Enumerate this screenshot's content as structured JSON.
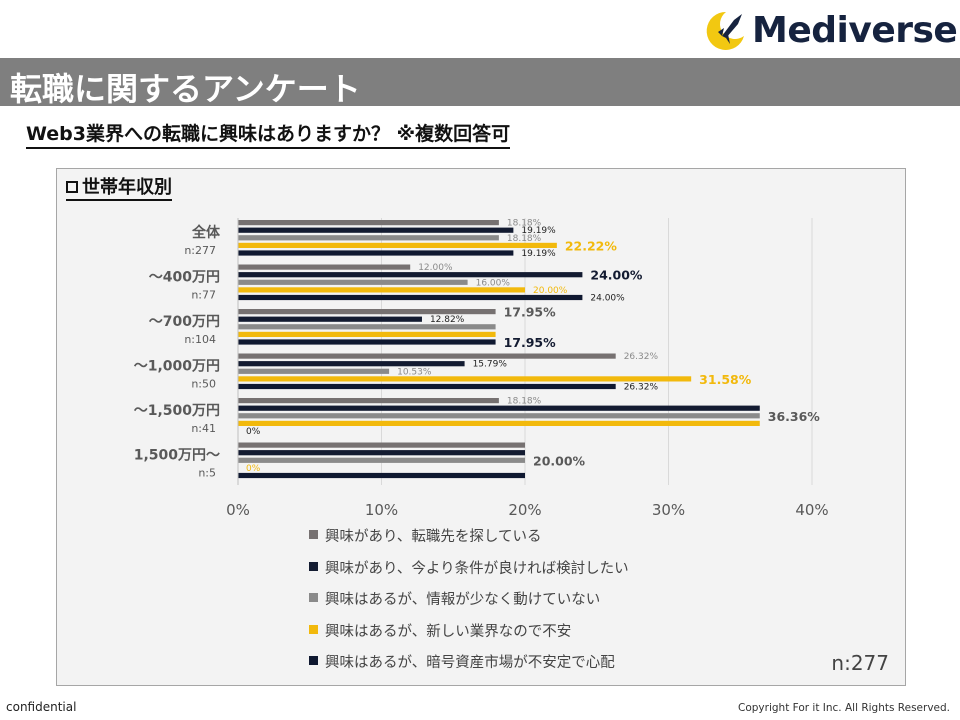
{
  "brand": {
    "name": "Mediverse"
  },
  "header": {
    "title": "転職に関するアンケート"
  },
  "question": "Web3業界への転職に興味はありますか？ ※複数回答可",
  "panel": {
    "title": "世帯年収別",
    "n_total": "n:277"
  },
  "footer": {
    "left": "confidential",
    "right": "Copyright For it Inc. All Rights Reserved."
  },
  "colors": {
    "s1": "#767171",
    "s2": "#131b31",
    "s3": "#8a8a8a",
    "s4": "#f2b90c",
    "s5": "#0f1830",
    "panel_bg": "#f3f3f3",
    "grid": "#d9d9d9"
  },
  "chart_data": {
    "type": "bar",
    "orientation": "horizontal",
    "categories": [
      "全体",
      "～400万円",
      "～700万円",
      "～1,000万円",
      "～1,500万円",
      "1,500万円～"
    ],
    "category_n": [
      "n:277",
      "n:77",
      "n:104",
      "n:50",
      "n:41",
      "n:5"
    ],
    "series": [
      {
        "name": "興味があり、転職先を探している",
        "values": [
          18.18,
          12.0,
          17.95,
          26.32,
          18.18,
          20.0
        ],
        "labels": [
          "18.18%",
          "12.00%",
          "17.95%",
          "26.32%",
          "18.18%",
          ""
        ]
      },
      {
        "name": "興味があり、今より条件が良ければ検討したい",
        "values": [
          19.19,
          24.0,
          12.82,
          15.79,
          36.36,
          20.0
        ],
        "labels": [
          "19.19%",
          "24.00%",
          "12.82%",
          "15.79%",
          "",
          ""
        ]
      },
      {
        "name": "興味はあるが、情報が少なく動けていない",
        "values": [
          18.18,
          16.0,
          17.95,
          10.53,
          36.36,
          20.0
        ],
        "labels": [
          "18.18%",
          "16.00%",
          "",
          "10.53%",
          "36.36%",
          "20.00%"
        ]
      },
      {
        "name": "興味はあるが、新しい業界なので不安",
        "values": [
          22.22,
          20.0,
          17.95,
          31.58,
          36.36,
          0.0
        ],
        "labels": [
          "22.22%",
          "20.00%",
          "",
          "31.58%",
          "",
          "0%"
        ]
      },
      {
        "name": "興味はあるが、暗号資産市場が不安定で心配",
        "values": [
          19.19,
          24.0,
          17.95,
          26.32,
          0.0,
          20.0
        ],
        "labels": [
          "19.19%",
          "24.00%",
          "17.95%",
          "26.32%",
          "0%",
          ""
        ]
      }
    ],
    "xlim": [
      0,
      40
    ],
    "xticks": [
      "0%",
      "10%",
      "20%",
      "30%",
      "40%"
    ],
    "grid": true,
    "legend": "bottom"
  }
}
